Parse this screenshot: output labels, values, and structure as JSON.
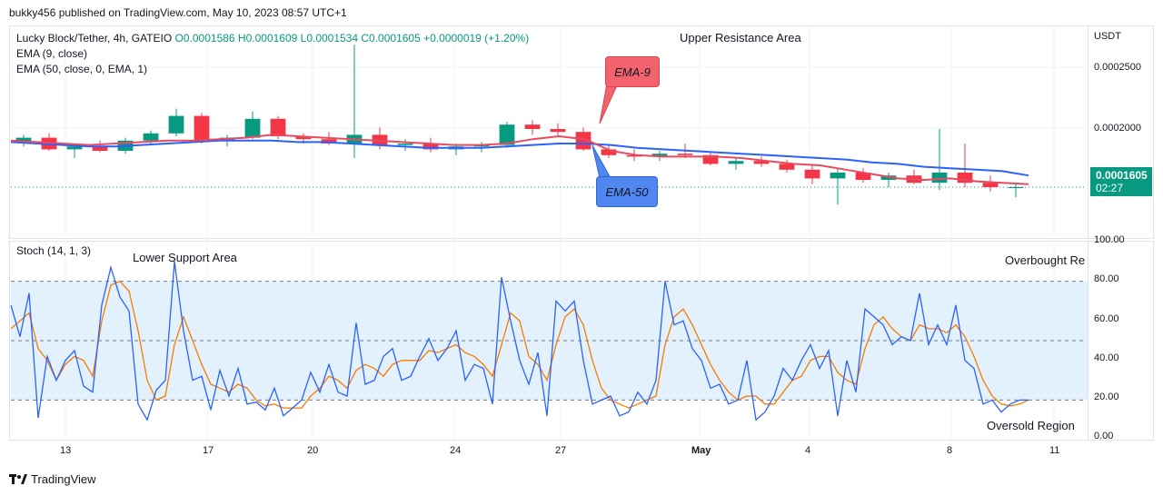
{
  "publish_line": "bukky456 published on TradingView.com, May 10, 2023 08:57 UTC+1",
  "legend": {
    "symbol": "Lucky Block/Tether, 4h, GATEIO",
    "ohlc": "O0.0001586 H0.0001609 L0.0001534 C0.0001605 +0.0000019 (+1.20%)",
    "ema9": "EMA (9, close)",
    "ema50": "EMA (50, close, 0, EMA, 1)",
    "stoch": "Stoch (14, 1, 3)"
  },
  "annotations": {
    "upper": "Upper Resistance Area",
    "lower": "Lower Support Area",
    "overbought": "Overbought Re",
    "oversold": "Oversold Region",
    "ema9_callout": "EMA-9",
    "ema50_callout": "EMA-50"
  },
  "price_axis": {
    "currency": "USDT",
    "ticks": [
      "0.0002500",
      "0.0002000"
    ],
    "current_price": "0.0001605",
    "countdown": "02:27"
  },
  "stoch_axis": {
    "ticks": [
      "100.00",
      "80.00",
      "60.00",
      "40.00",
      "20.00",
      "0.00"
    ]
  },
  "x_axis": {
    "ticks": [
      "13",
      "17",
      "20",
      "24",
      "27",
      "May",
      "4",
      "8",
      "11"
    ]
  },
  "footer": "TradingView",
  "colors": {
    "up": "#089981",
    "down": "#f23645",
    "ema9": "#e84a5f",
    "ema50": "#2962ff",
    "stoch_k": "#2962ff",
    "stoch_d": "#f57c00",
    "band": "#e3f1fc"
  },
  "chart_data": [
    {
      "type": "candlestick",
      "title": "Lucky Block/Tether, 4h, GATEIO",
      "ylabel": "USDT",
      "ylim": [
        0.000125,
        0.00027
      ],
      "x_ticks": [
        "13",
        "17",
        "20",
        "24",
        "27",
        "May",
        "4",
        "8",
        "11"
      ],
      "series": [
        {
          "name": "EMA (9, close)",
          "values": [
            0.000192,
            0.000191,
            0.00019,
            0.000189,
            0.00019,
            0.000191,
            0.000192,
            0.000192,
            0.000193,
            0.000194,
            0.000196,
            0.000195,
            0.000194,
            0.000193,
            0.000192,
            0.000191,
            0.00019,
            0.000189,
            0.000189,
            0.00019,
            0.000193,
            0.000195,
            0.000193,
            0.000185,
            0.000182,
            0.000181,
            0.000181,
            0.000181,
            0.00018,
            0.000178,
            0.000176,
            0.000175,
            0.000172,
            0.000169,
            0.000166,
            0.000165,
            0.000166,
            0.000164,
            0.000163,
            0.000162
          ]
        },
        {
          "name": "EMA (50, close, 0, EMA, 1)",
          "values": [
            0.000191,
            0.00019,
            0.000189,
            0.000188,
            0.000188,
            0.000189,
            0.00019,
            0.000191,
            0.000192,
            0.000192,
            0.000192,
            0.000191,
            0.000191,
            0.00019,
            0.000189,
            0.000188,
            0.000187,
            0.000187,
            0.000187,
            0.000188,
            0.000189,
            0.00019,
            0.00019,
            0.000189,
            0.000187,
            0.000186,
            0.000185,
            0.000184,
            0.000183,
            0.000182,
            0.000181,
            0.00018,
            0.000179,
            0.000177,
            0.000176,
            0.000174,
            0.000173,
            0.000172,
            0.000171,
            0.000168
          ]
        }
      ],
      "candles": [
        [
          0.000191,
          0.000196,
          0.000188,
          0.000194
        ],
        [
          0.000194,
          0.000197,
          0.000185,
          0.000186
        ],
        [
          0.000186,
          0.00019,
          0.00018,
          0.000188
        ],
        [
          0.000188,
          0.000192,
          0.000184,
          0.000185
        ],
        [
          0.000185,
          0.000194,
          0.000183,
          0.000192
        ],
        [
          0.000192,
          0.000199,
          0.00019,
          0.000197
        ],
        [
          0.000197,
          0.000214,
          0.000195,
          0.000209
        ],
        [
          0.000209,
          0.000211,
          0.00019,
          0.000192
        ],
        [
          0.000192,
          0.000196,
          0.000188,
          0.000194
        ],
        [
          0.000194,
          0.000212,
          0.000193,
          0.000207
        ],
        [
          0.000207,
          0.000209,
          0.000193,
          0.000195
        ],
        [
          0.000195,
          0.000197,
          0.00019,
          0.000193
        ],
        [
          0.000193,
          0.000198,
          0.000189,
          0.00019
        ],
        [
          0.00019,
          0.000258,
          0.00018,
          0.000196
        ],
        [
          0.000196,
          0.000201,
          0.000186,
          0.000189
        ],
        [
          0.000189,
          0.000193,
          0.000185,
          0.00019
        ],
        [
          0.00019,
          0.000194,
          0.000184,
          0.000186
        ],
        [
          0.000186,
          0.00019,
          0.000182,
          0.000188
        ],
        [
          0.000188,
          0.000191,
          0.000184,
          0.000189
        ],
        [
          0.000189,
          0.000205,
          0.000187,
          0.000203
        ],
        [
          0.000203,
          0.000206,
          0.000196,
          0.0002
        ],
        [
          0.0002,
          0.000204,
          0.000195,
          0.000198
        ],
        [
          0.000198,
          0.000201,
          0.000185,
          0.000186
        ],
        [
          0.000186,
          0.000189,
          0.00018,
          0.000182
        ],
        [
          0.000182,
          0.000186,
          0.000178,
          0.000181
        ],
        [
          0.000181,
          0.000185,
          0.000178,
          0.000183
        ],
        [
          0.000183,
          0.00019,
          0.00018,
          0.000182
        ],
        [
          0.000182,
          0.000184,
          0.000175,
          0.000176
        ],
        [
          0.000176,
          0.00018,
          0.000172,
          0.000178
        ],
        [
          0.000178,
          0.000181,
          0.000174,
          0.000176
        ],
        [
          0.000176,
          0.000179,
          0.00017,
          0.000172
        ],
        [
          0.000172,
          0.000176,
          0.000162,
          0.000166
        ],
        [
          0.000166,
          0.000173,
          0.000148,
          0.00017
        ],
        [
          0.00017,
          0.000173,
          0.000163,
          0.000165
        ],
        [
          0.000165,
          0.00017,
          0.00016,
          0.000168
        ],
        [
          0.000168,
          0.000172,
          0.000162,
          0.000163
        ],
        [
          0.000163,
          0.0002,
          0.000158,
          0.00017
        ],
        [
          0.00017,
          0.00019,
          0.00016,
          0.000163
        ],
        [
          0.000163,
          0.000168,
          0.000157,
          0.00016
        ],
        [
          0.00016,
          0.000163,
          0.000153,
          0.00016
        ]
      ]
    },
    {
      "type": "line",
      "title": "Stoch (14, 1, 3)",
      "ylim": [
        0,
        100
      ],
      "bands": {
        "upper": 80,
        "middle": 50,
        "lower": 20
      },
      "series": [
        {
          "name": "%K",
          "values": [
            68,
            52,
            74,
            11,
            42,
            30,
            40,
            45,
            27,
            24,
            68,
            87,
            72,
            65,
            18,
            10,
            25,
            30,
            90,
            55,
            30,
            32,
            15,
            35,
            22,
            36,
            18,
            19,
            15,
            26,
            12,
            16,
            20,
            34,
            24,
            38,
            24,
            22,
            59,
            28,
            30,
            42,
            46,
            30,
            32,
            42,
            51,
            40,
            46,
            55,
            30,
            38,
            36,
            18,
            82,
            60,
            40,
            28,
            44,
            12,
            70,
            65,
            70,
            40,
            18,
            20,
            22,
            12,
            14,
            24,
            18,
            30,
            80,
            58,
            60,
            46,
            40,
            26,
            28,
            18,
            20,
            40,
            10,
            14,
            22,
            36,
            30,
            40,
            48,
            36,
            45,
            12,
            40,
            24,
            66,
            62,
            58,
            48,
            52,
            50,
            74,
            48,
            58,
            48,
            68,
            40,
            36,
            18,
            20,
            14,
            18,
            20,
            20
          ]
        },
        {
          "name": "%D",
          "values": [
            56,
            60,
            64,
            46,
            40,
            30,
            38,
            42,
            40,
            32,
            60,
            78,
            80,
            75,
            55,
            30,
            20,
            22,
            48,
            62,
            50,
            38,
            28,
            26,
            24,
            28,
            26,
            20,
            17,
            18,
            16,
            16,
            16,
            22,
            26,
            32,
            30,
            26,
            35,
            38,
            36,
            32,
            38,
            40,
            40,
            40,
            45,
            44,
            46,
            48,
            44,
            42,
            38,
            32,
            48,
            64,
            60,
            42,
            38,
            30,
            48,
            62,
            66,
            58,
            40,
            26,
            20,
            18,
            16,
            18,
            20,
            22,
            48,
            62,
            66,
            58,
            48,
            38,
            30,
            24,
            20,
            22,
            22,
            18,
            18,
            24,
            30,
            32,
            40,
            42,
            42,
            34,
            30,
            28,
            46,
            58,
            62,
            56,
            52,
            50,
            58,
            56,
            56,
            54,
            58,
            52,
            42,
            30,
            22,
            18,
            17,
            18,
            20
          ]
        }
      ]
    }
  ]
}
